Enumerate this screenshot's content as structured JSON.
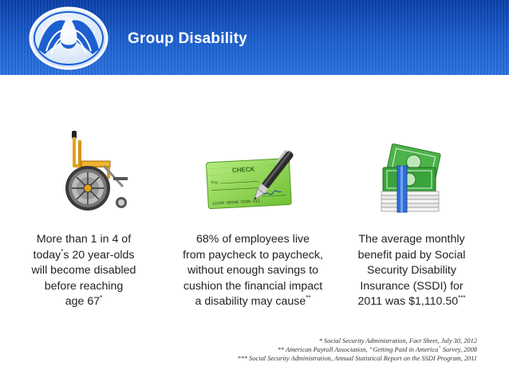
{
  "header": {
    "title": "Group Disability"
  },
  "colors": {
    "header_dark": "#0a3fa8",
    "header_light": "#2a71de",
    "check_green": "#8fd44a",
    "money_green": "#3aa33c",
    "wheelchair_gold": "#e0a41c"
  },
  "icons": [
    "allstate-hands-logo",
    "wheelchair-icon",
    "check-and-pen-icon",
    "money-stack-icon"
  ],
  "stat1": {
    "line1": "More than 1 in 4 of",
    "line2a": "today",
    "mark": "*",
    "line2b": "s 20 year-olds",
    "line3": "will become disabled",
    "line4": "before reaching",
    "line5": "age 67"
  },
  "stat2": {
    "line1": "68% of employees live",
    "line2": "from paycheck to paycheck,",
    "line3": "without enough savings to",
    "line4": "cushion the financial impact",
    "line5": "a disability may cause",
    "mark": "**"
  },
  "stat3": {
    "line1": "The average monthly",
    "line2": "benefit paid by Social",
    "line3": "Security Disability",
    "line4": "Insurance (SSDI) for",
    "line5": "2011 was $1,110.50",
    "mark": "***"
  },
  "check": {
    "label": "CHECK",
    "pay": "Pay",
    "micr": "12100 00100 0100 111"
  },
  "footnotes": {
    "f1": "* Social Security Administration, Fact Sheet, July 30, 2012",
    "f2a": "** American Payroll Association, “Getting Paid in America",
    "f2mark": "”",
    "f2b": " Survey, 2008",
    "f3": "*** Social Security Administration, Annual Statistical Report on the SSDI Program, 2011"
  }
}
